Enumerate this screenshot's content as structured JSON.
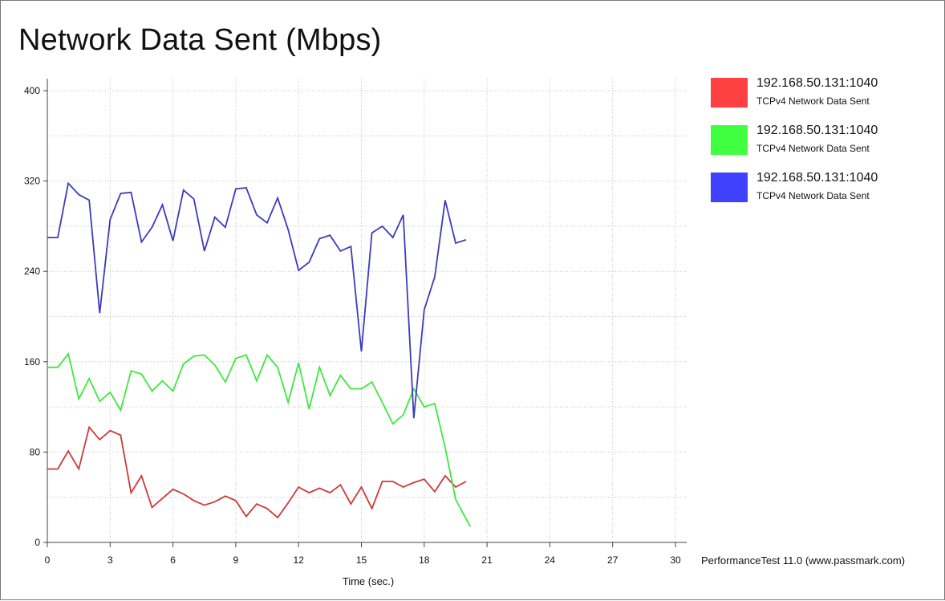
{
  "chart_data": {
    "type": "line",
    "title": "Network Data Sent (Mbps)",
    "xlabel": "Time (sec.)",
    "ylabel": "",
    "xlim": [
      0,
      30
    ],
    "ylim": [
      0,
      400
    ],
    "xticks": [
      0,
      3,
      6,
      9,
      12,
      15,
      18,
      21,
      24,
      27,
      30
    ],
    "yticks": [
      0,
      80,
      160,
      240,
      320,
      400
    ],
    "grid": true,
    "legend_position": "right",
    "series": [
      {
        "name": "192.168.50.131:1040",
        "subtitle": "TCPv4 Network Data Sent",
        "color": "#cc3a3a",
        "swatch": "#ff4040",
        "x": [
          0,
          0.5,
          1,
          1.5,
          2,
          2.5,
          3,
          3.5,
          4,
          4.5,
          5,
          5.5,
          6,
          6.5,
          7,
          7.5,
          8,
          8.5,
          9,
          9.5,
          10,
          10.5,
          11,
          11.5,
          12,
          12.5,
          13,
          13.5,
          14,
          14.5,
          15,
          15.5,
          16,
          16.5,
          17,
          17.5,
          18,
          18.5,
          19,
          19.5,
          20
        ],
        "values": [
          65,
          65,
          81,
          65,
          102,
          91,
          99,
          95,
          44,
          59,
          31,
          39,
          47,
          43,
          37,
          33,
          36,
          41,
          37,
          23,
          34,
          30,
          22,
          35,
          49,
          44,
          48,
          44,
          51,
          34,
          49,
          30,
          54,
          54,
          49,
          53,
          56,
          45,
          59,
          49,
          54
        ]
      },
      {
        "name": "192.168.50.131:1040",
        "subtitle": "TCPv4 Network Data Sent",
        "color": "#3ee83e",
        "swatch": "#40ff40",
        "x": [
          0,
          0.5,
          1,
          1.5,
          2,
          2.5,
          3,
          3.5,
          4,
          4.5,
          5,
          5.5,
          6,
          6.5,
          7,
          7.5,
          8,
          8.5,
          9,
          9.5,
          10,
          10.5,
          11,
          11.5,
          12,
          12.5,
          13,
          13.5,
          14,
          14.5,
          15,
          15.5,
          16,
          16.5,
          17,
          17.5,
          18,
          18.5,
          19,
          19.5,
          20.2
        ],
        "values": [
          155,
          155,
          167,
          127,
          145,
          125,
          133,
          117,
          152,
          149,
          134,
          143,
          134,
          158,
          165,
          166,
          157,
          142,
          163,
          166,
          143,
          166,
          155,
          124,
          159,
          118,
          155,
          130,
          148,
          136,
          136,
          142,
          124,
          105,
          113,
          136,
          120,
          123,
          84,
          38,
          14
        ]
      },
      {
        "name": "192.168.50.131:1040",
        "subtitle": "TCPv4 Network Data Sent",
        "color": "#3b3bbf",
        "swatch": "#4040ff",
        "x": [
          0,
          0.5,
          1,
          1.5,
          2,
          2.5,
          3,
          3.5,
          4,
          4.5,
          5,
          5.5,
          6,
          6.5,
          7,
          7.5,
          8,
          8.5,
          9,
          9.5,
          10,
          10.5,
          11,
          11.5,
          12,
          12.5,
          13,
          13.5,
          14,
          14.5,
          15,
          15.5,
          16,
          16.5,
          17,
          17.5,
          18,
          18.5,
          19,
          19.5,
          20
        ],
        "values": [
          270,
          270,
          318,
          308,
          303,
          203,
          286,
          309,
          310,
          266,
          279,
          299,
          267,
          312,
          304,
          258,
          288,
          279,
          313,
          314,
          290,
          283,
          305,
          277,
          241,
          248,
          269,
          272,
          258,
          262,
          169,
          274,
          280,
          270,
          290,
          110,
          206,
          235,
          303,
          265,
          268
        ]
      }
    ]
  },
  "footer_text": "PerformanceTest 11.0 (www.passmark.com)"
}
